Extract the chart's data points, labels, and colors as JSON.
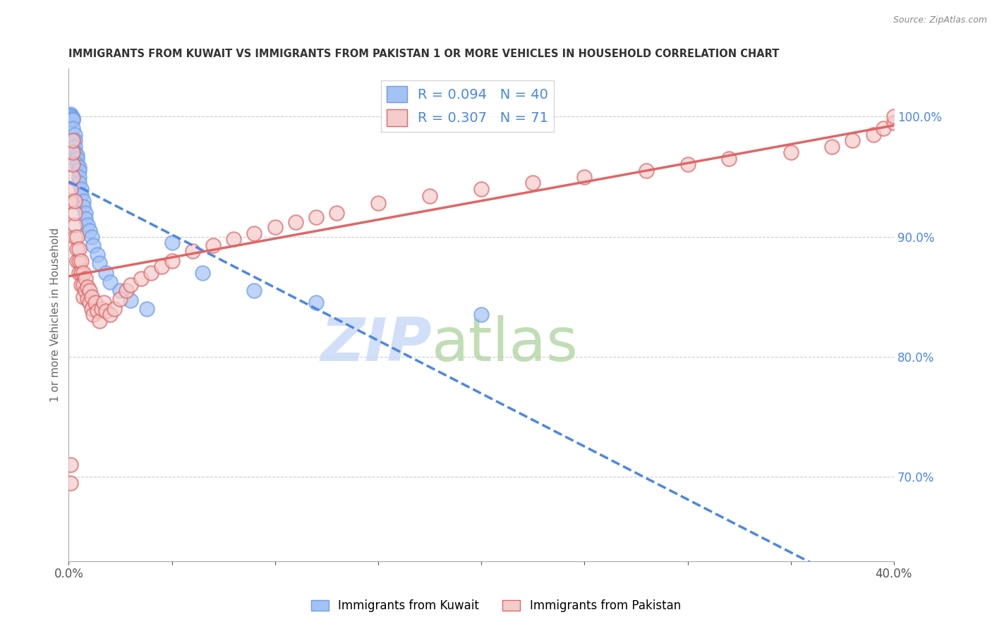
{
  "title": "IMMIGRANTS FROM KUWAIT VS IMMIGRANTS FROM PAKISTAN 1 OR MORE VEHICLES IN HOUSEHOLD CORRELATION CHART",
  "source": "Source: ZipAtlas.com",
  "ylabel": "1 or more Vehicles in Household",
  "kuwait_R": 0.094,
  "kuwait_N": 40,
  "pakistan_R": 0.307,
  "pakistan_N": 71,
  "kuwait_color": "#a4c2f4",
  "pakistan_color": "#f4cccc",
  "kuwait_edge_color": "#6d9eeb",
  "pakistan_edge_color": "#e06666",
  "kuwait_line_color": "#4a86e8",
  "pakistan_line_color": "#e06666",
  "legend_text_color": "#4a86e8",
  "right_axis_color": "#4a86e8",
  "watermark_zip_color": "#c9daf8",
  "watermark_atlas_color": "#b6d7a8",
  "xlim": [
    0.0,
    0.4
  ],
  "ylim": [
    0.63,
    1.04
  ],
  "right_yticks": [
    0.7,
    0.8,
    0.9,
    1.0
  ],
  "trendline_xlim": [
    0.0,
    0.4
  ],
  "kuwait_x": [
    0.001,
    0.001,
    0.001,
    0.002,
    0.002,
    0.002,
    0.002,
    0.003,
    0.003,
    0.003,
    0.003,
    0.004,
    0.004,
    0.004,
    0.005,
    0.005,
    0.005,
    0.005,
    0.006,
    0.006,
    0.007,
    0.007,
    0.008,
    0.008,
    0.009,
    0.01,
    0.011,
    0.012,
    0.014,
    0.015,
    0.018,
    0.02,
    0.025,
    0.03,
    0.038,
    0.05,
    0.065,
    0.09,
    0.12,
    0.2
  ],
  "kuwait_y": [
    1.002,
    1.001,
    1.0,
    0.999,
    0.998,
    0.997,
    0.99,
    0.985,
    0.98,
    0.975,
    0.97,
    0.968,
    0.965,
    0.96,
    0.958,
    0.955,
    0.95,
    0.945,
    0.94,
    0.935,
    0.93,
    0.925,
    0.92,
    0.915,
    0.91,
    0.905,
    0.9,
    0.893,
    0.885,
    0.878,
    0.87,
    0.862,
    0.855,
    0.847,
    0.84,
    0.895,
    0.87,
    0.855,
    0.845,
    0.835
  ],
  "pakistan_x": [
    0.001,
    0.001,
    0.001,
    0.001,
    0.002,
    0.002,
    0.002,
    0.002,
    0.003,
    0.003,
    0.003,
    0.003,
    0.004,
    0.004,
    0.004,
    0.005,
    0.005,
    0.005,
    0.006,
    0.006,
    0.006,
    0.007,
    0.007,
    0.007,
    0.008,
    0.008,
    0.009,
    0.009,
    0.01,
    0.01,
    0.011,
    0.011,
    0.012,
    0.013,
    0.014,
    0.015,
    0.016,
    0.017,
    0.018,
    0.02,
    0.022,
    0.025,
    0.028,
    0.03,
    0.035,
    0.04,
    0.045,
    0.05,
    0.06,
    0.07,
    0.08,
    0.09,
    0.1,
    0.11,
    0.12,
    0.13,
    0.15,
    0.175,
    0.2,
    0.225,
    0.25,
    0.28,
    0.3,
    0.32,
    0.35,
    0.37,
    0.38,
    0.39,
    0.395,
    0.4,
    0.4
  ],
  "pakistan_y": [
    0.695,
    0.71,
    0.93,
    0.94,
    0.95,
    0.96,
    0.97,
    0.98,
    0.9,
    0.91,
    0.92,
    0.93,
    0.88,
    0.89,
    0.9,
    0.87,
    0.88,
    0.89,
    0.86,
    0.87,
    0.88,
    0.85,
    0.86,
    0.87,
    0.855,
    0.865,
    0.848,
    0.858,
    0.845,
    0.855,
    0.84,
    0.85,
    0.835,
    0.845,
    0.838,
    0.83,
    0.84,
    0.845,
    0.838,
    0.835,
    0.84,
    0.848,
    0.855,
    0.86,
    0.865,
    0.87,
    0.875,
    0.88,
    0.888,
    0.893,
    0.898,
    0.903,
    0.908,
    0.912,
    0.916,
    0.92,
    0.928,
    0.934,
    0.94,
    0.945,
    0.95,
    0.955,
    0.96,
    0.965,
    0.97,
    0.975,
    0.98,
    0.985,
    0.99,
    0.995,
    1.0
  ]
}
